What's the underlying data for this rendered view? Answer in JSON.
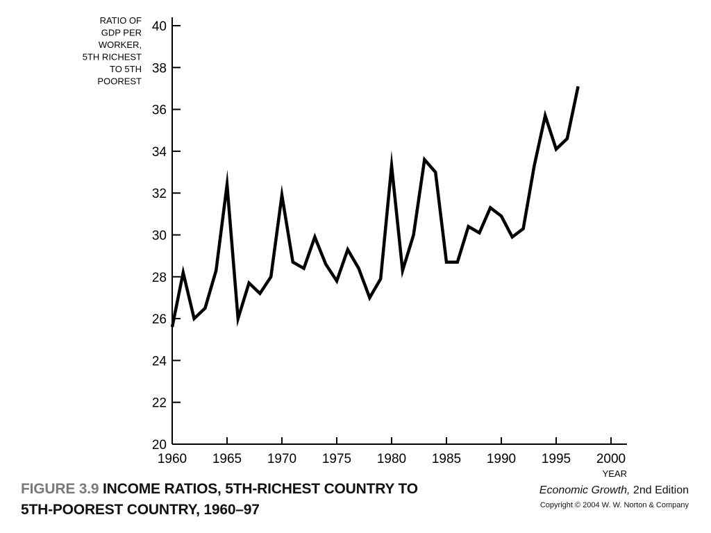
{
  "chart_data": {
    "type": "line",
    "ylabel_lines": [
      "RATIO OF",
      "GDP PER",
      "WORKER,",
      "5TH RICHEST",
      "TO 5TH",
      "POOREST"
    ],
    "xlabel": "YEAR",
    "xlim": [
      1960,
      2000
    ],
    "ylim": [
      20,
      40
    ],
    "xticks": [
      1960,
      1965,
      1970,
      1975,
      1980,
      1985,
      1990,
      1995,
      2000
    ],
    "yticks": [
      20,
      22,
      24,
      26,
      28,
      30,
      32,
      34,
      36,
      38,
      40
    ],
    "grid": false,
    "series": [
      {
        "x": [
          1960,
          1961,
          1962,
          1963,
          1964,
          1965,
          1966,
          1967,
          1968,
          1969,
          1970,
          1971,
          1972,
          1973,
          1974,
          1975,
          1976,
          1977,
          1978,
          1979,
          1980,
          1981,
          1982,
          1983,
          1984,
          1985,
          1986,
          1987,
          1988,
          1989,
          1990,
          1991,
          1992,
          1993,
          1994,
          1995,
          1996,
          1997
        ],
        "y": [
          25.6,
          28.2,
          26.0,
          26.5,
          28.3,
          32.4,
          26.0,
          27.7,
          27.2,
          28.0,
          31.9,
          28.7,
          28.4,
          29.9,
          28.6,
          27.8,
          29.3,
          28.4,
          27.0,
          27.9,
          33.3,
          28.3,
          30.0,
          33.6,
          33.0,
          28.7,
          28.7,
          30.4,
          30.1,
          31.3,
          30.9,
          29.9,
          30.3,
          33.3,
          35.7,
          34.1,
          34.6,
          37.1
        ]
      }
    ],
    "line_color": "#000000"
  },
  "caption": {
    "figure_number": "FIGURE 3.9",
    "title_line1": "INCOME RATIOS, 5TH-RICHEST COUNTRY TO",
    "title_line2": "5TH-POOREST COUNTRY, 1960–97"
  },
  "credit": {
    "book_title": "Economic Growth,",
    "edition": " 2nd Edition",
    "copyright": "Copyright © 2004 W. W. Norton & Company"
  }
}
